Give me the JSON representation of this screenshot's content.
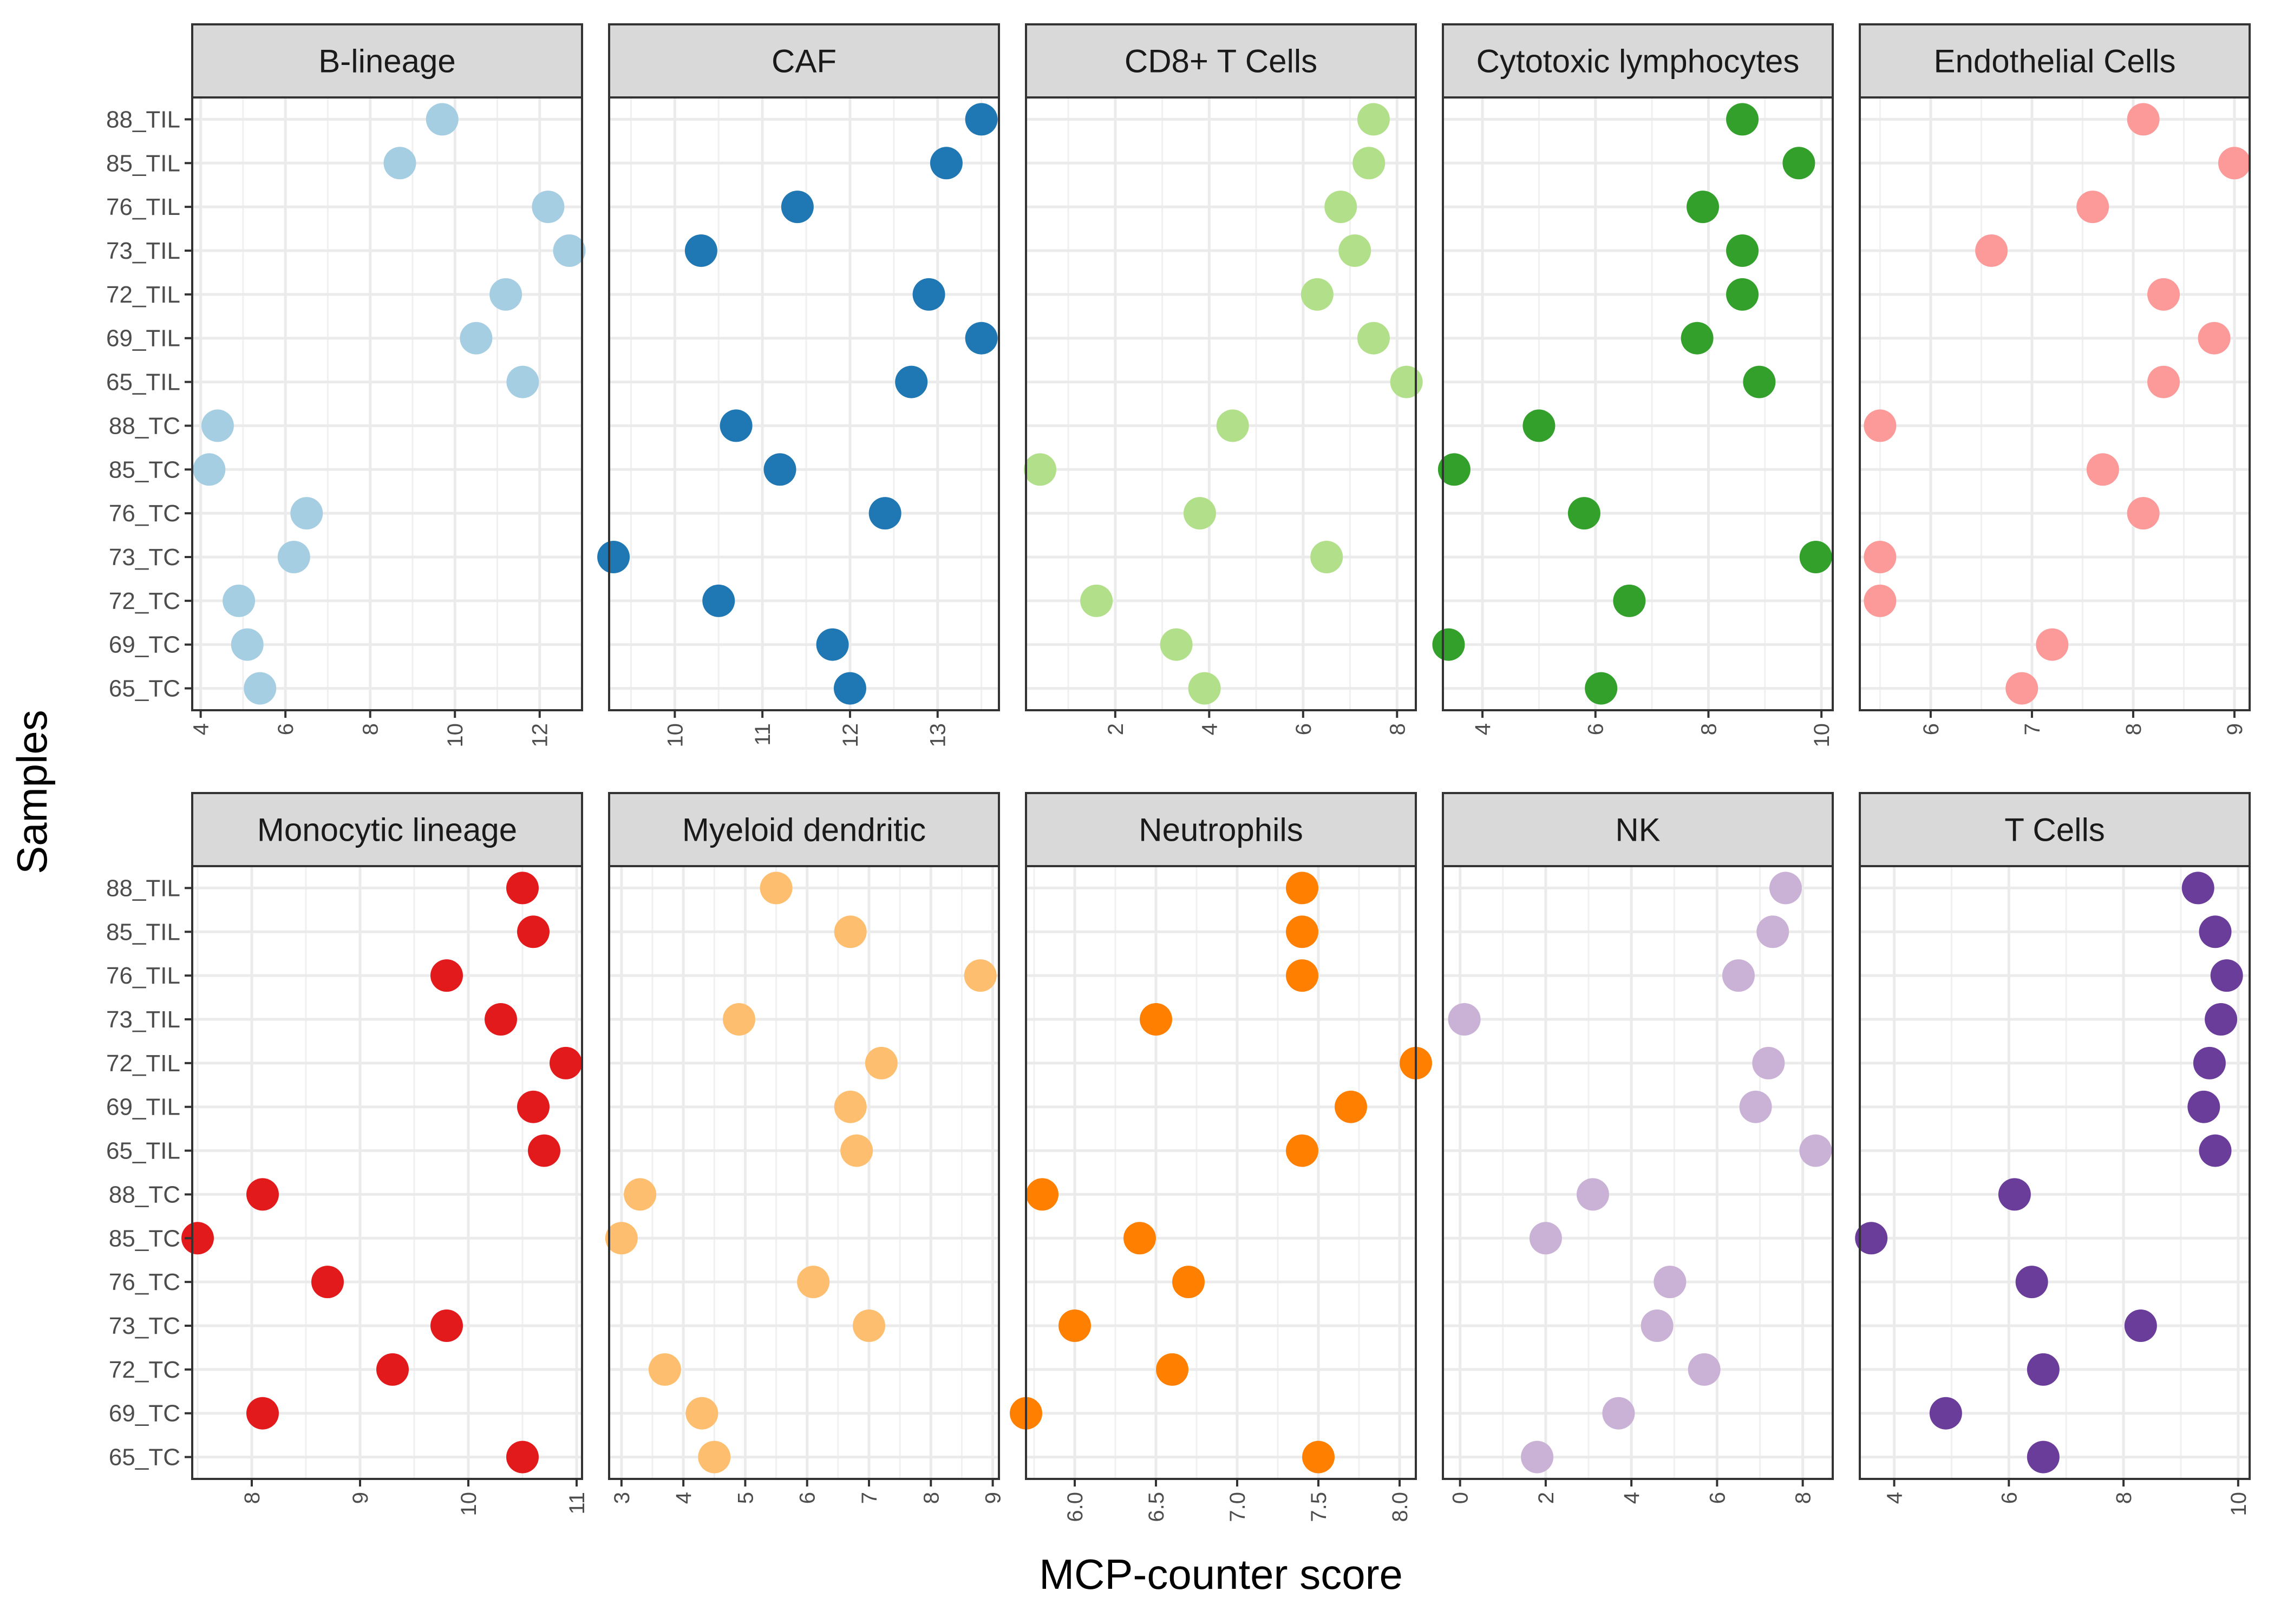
{
  "chart_data": {
    "type": "scatter",
    "xlabel": "MCP-counter score",
    "ylabel": "Samples",
    "grid": true,
    "legend": "none",
    "samples": [
      "88_TIL",
      "85_TIL",
      "76_TIL",
      "73_TIL",
      "72_TIL",
      "69_TIL",
      "65_TIL",
      "88_TC",
      "85_TC",
      "76_TC",
      "73_TC",
      "72_TC",
      "69_TC",
      "65_TC"
    ],
    "panels": [
      {
        "name": "B-lineage",
        "color": "#a6cee3",
        "xlim": [
          3.8,
          13.0
        ],
        "ticks": [
          4,
          6,
          8,
          10,
          12
        ],
        "values": [
          9.7,
          8.7,
          12.2,
          12.7,
          11.2,
          10.5,
          11.6,
          4.4,
          4.2,
          6.5,
          6.2,
          4.9,
          5.1,
          5.4
        ]
      },
      {
        "name": "CAF",
        "color": "#1f78b4",
        "xlim": [
          9.25,
          13.7
        ],
        "ticks": [
          10,
          11,
          12,
          13
        ],
        "values": [
          13.5,
          13.1,
          11.4,
          10.3,
          12.9,
          13.5,
          12.7,
          10.7,
          11.2,
          12.4,
          9.3,
          10.5,
          11.8,
          12.0
        ]
      },
      {
        "name": "CD8+ T Cells",
        "color": "#b2df8a",
        "xlim": [
          0.1,
          8.4
        ],
        "ticks": [
          2,
          4,
          6,
          8
        ],
        "values": [
          7.5,
          7.4,
          6.8,
          7.1,
          6.3,
          7.5,
          8.2,
          4.5,
          0.4,
          3.8,
          6.5,
          1.6,
          3.3,
          3.9
        ]
      },
      {
        "name": "Cytotoxic lymphocytes",
        "color": "#33a02c",
        "xlim": [
          3.3,
          10.2
        ],
        "ticks": [
          4,
          6,
          8,
          10
        ],
        "values": [
          8.6,
          9.6,
          7.9,
          8.6,
          8.6,
          7.8,
          8.9,
          5.0,
          3.5,
          5.8,
          9.9,
          6.6,
          3.4,
          6.1
        ]
      },
      {
        "name": "Endothelial Cells",
        "color": "#fb9a99",
        "xlim": [
          5.3,
          9.15
        ],
        "ticks": [
          6,
          7,
          8,
          9
        ],
        "values": [
          8.1,
          9.0,
          7.6,
          6.6,
          8.3,
          8.8,
          8.3,
          5.5,
          7.7,
          8.1,
          5.5,
          5.5,
          7.2,
          6.9
        ]
      },
      {
        "name": "Monocytic lineage",
        "color": "#e31a1c",
        "xlim": [
          7.45,
          11.05
        ],
        "ticks": [
          8,
          9,
          10,
          11
        ],
        "values": [
          10.5,
          10.6,
          9.8,
          10.3,
          10.9,
          10.6,
          10.7,
          8.1,
          7.5,
          8.7,
          9.8,
          9.3,
          8.1,
          10.5
        ]
      },
      {
        "name": "Myeloid dendritic",
        "color": "#fdbf6f",
        "xlim": [
          2.8,
          9.1
        ],
        "ticks": [
          3,
          4,
          5,
          6,
          7,
          8,
          9
        ],
        "values": [
          5.5,
          6.7,
          8.8,
          4.9,
          7.2,
          6.7,
          6.8,
          3.3,
          3.0,
          6.1,
          7.0,
          3.7,
          4.3,
          4.5
        ]
      },
      {
        "name": "Neutrophils",
        "color": "#ff7f00",
        "xlim": [
          5.7,
          8.1
        ],
        "ticks": [
          6.0,
          6.5,
          7.0,
          7.5,
          8.0
        ],
        "tick_labels": [
          "6.0",
          "6.5",
          "7.0",
          "7.5",
          "8.0"
        ],
        "values": [
          7.4,
          7.4,
          7.4,
          6.5,
          8.1,
          7.7,
          7.4,
          5.8,
          6.4,
          6.7,
          6.0,
          6.6,
          5.7,
          7.5
        ]
      },
      {
        "name": "NK",
        "color": "#cab2d6",
        "xlim": [
          -0.4,
          8.7
        ],
        "ticks": [
          0,
          2,
          4,
          6,
          8
        ],
        "values": [
          7.6,
          7.3,
          6.5,
          0.1,
          7.2,
          6.9,
          8.3,
          3.1,
          2.0,
          4.9,
          4.6,
          5.7,
          3.7,
          1.8
        ]
      },
      {
        "name": "T Cells",
        "color": "#6a3d9a",
        "xlim": [
          3.4,
          10.2
        ],
        "ticks": [
          4,
          6,
          8,
          10
        ],
        "values": [
          9.3,
          9.6,
          9.8,
          9.7,
          9.5,
          9.4,
          9.6,
          6.1,
          3.6,
          6.4,
          8.3,
          6.6,
          4.9,
          6.6
        ]
      }
    ]
  }
}
